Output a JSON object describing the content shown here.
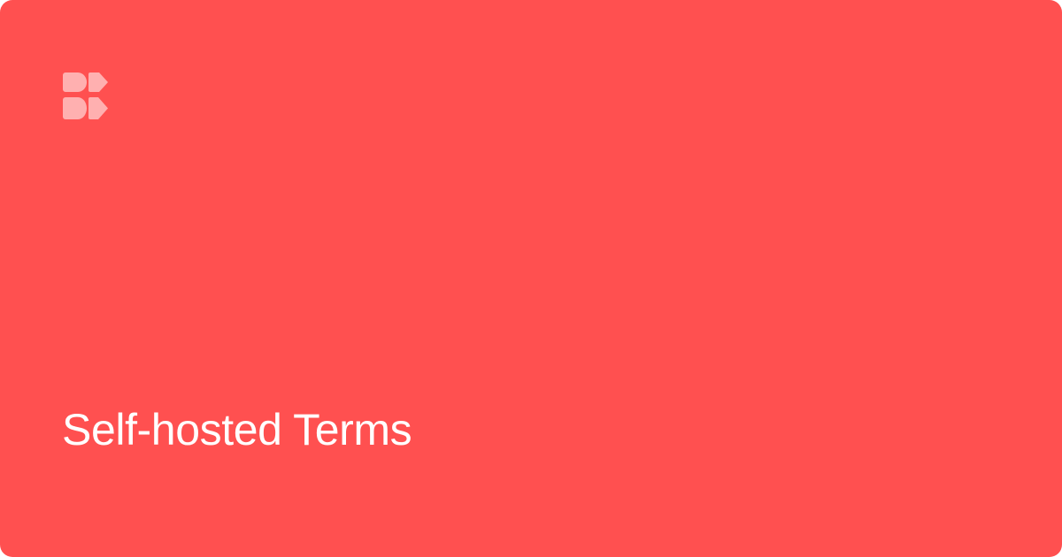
{
  "card": {
    "title": "Self-hosted Terms",
    "logo_icon": "brand-logo-icon"
  },
  "colors": {
    "background": "#ff5050",
    "logo": "#ffb0b0",
    "title_text": "#ffffff"
  }
}
